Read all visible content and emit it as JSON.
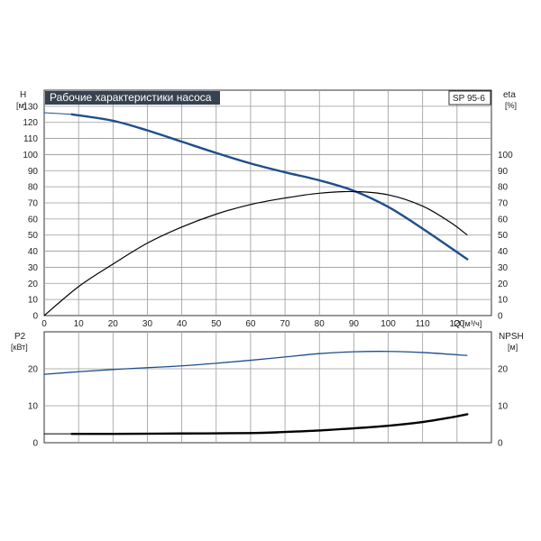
{
  "chart_data": {
    "type": "line",
    "title": "Рабочие характеристики насоса",
    "model": "SP 95-6",
    "x_axis": {
      "label": "Q",
      "unit": "[м³/ч]",
      "range": [
        0,
        130
      ],
      "ticks": [
        0,
        10,
        20,
        30,
        40,
        50,
        60,
        70,
        80,
        90,
        100,
        110,
        120
      ]
    },
    "top_panel": {
      "left_axis": {
        "label": "H",
        "unit": "[м]",
        "range": [
          0,
          140
        ],
        "ticks": [
          0,
          10,
          20,
          30,
          40,
          50,
          60,
          70,
          80,
          90,
          100,
          110,
          120,
          130
        ]
      },
      "right_axis": {
        "label": "eta",
        "unit": "[%]",
        "range": [
          0,
          140
        ],
        "ticks": [
          0,
          10,
          20,
          30,
          40,
          50,
          60,
          70,
          80,
          90,
          100
        ]
      },
      "series": [
        {
          "name": "H",
          "color": "#1f4e8c",
          "x": [
            0,
            8,
            20,
            30,
            40,
            50,
            60,
            70,
            80,
            90,
            100,
            110,
            123
          ],
          "y": [
            126,
            125,
            121,
            115,
            108,
            101,
            94.5,
            89,
            84,
            77.5,
            67.5,
            54,
            35
          ]
        },
        {
          "name": "eta",
          "color": "#000000",
          "x": [
            0,
            10,
            20,
            30,
            40,
            50,
            60,
            70,
            80,
            90,
            100,
            110,
            118,
            123
          ],
          "y": [
            0,
            18,
            32,
            45,
            55,
            63,
            69,
            73,
            76,
            77,
            75,
            68,
            58,
            50
          ]
        }
      ]
    },
    "bottom_panel": {
      "left_axis": {
        "label": "P2",
        "unit": "[кВт]",
        "range": [
          0,
          30
        ],
        "ticks": [
          0,
          10,
          20
        ]
      },
      "right_axis": {
        "label": "NPSH",
        "unit": "[м]",
        "range": [
          0,
          30
        ],
        "ticks": [
          0,
          10,
          20
        ]
      },
      "series": [
        {
          "name": "P2",
          "color": "#1f4e8c",
          "x": [
            0,
            10,
            20,
            30,
            40,
            50,
            60,
            70,
            80,
            90,
            100,
            110,
            123
          ],
          "y": [
            18.5,
            19.2,
            19.8,
            20.3,
            20.8,
            21.5,
            22.3,
            23.2,
            24.1,
            24.6,
            24.7,
            24.4,
            23.6
          ]
        },
        {
          "name": "NPSH",
          "color": "#000000",
          "x": [
            8,
            20,
            40,
            60,
            70,
            80,
            90,
            100,
            110,
            118,
            123
          ],
          "y": [
            2.4,
            2.4,
            2.5,
            2.6,
            2.9,
            3.3,
            3.9,
            4.6,
            5.6,
            6.8,
            7.7
          ]
        }
      ]
    }
  }
}
